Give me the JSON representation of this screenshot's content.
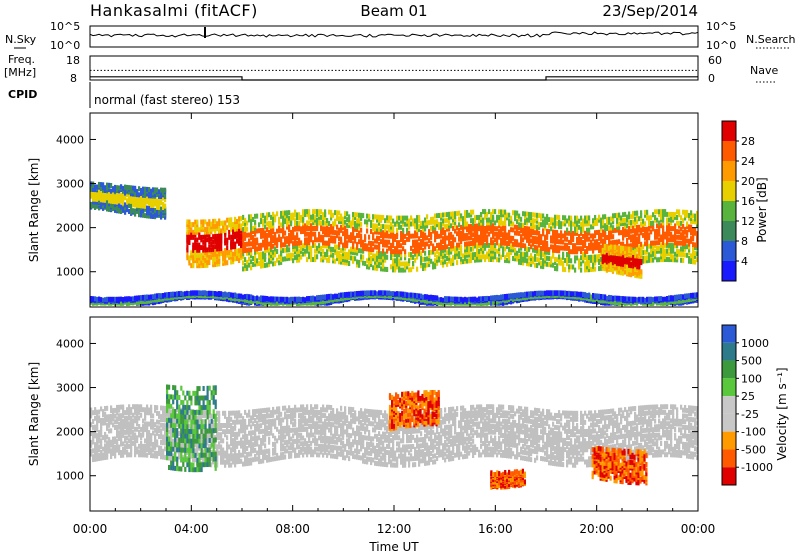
{
  "header": {
    "station": "Hankasalmi (fitACF)",
    "beam": "Beam 01",
    "date": "23/Sep/2014"
  },
  "noise_panel": {
    "left_label": "N.Sky",
    "right_label": "N.Search",
    "left_ticks": [
      "10^5",
      "10^0"
    ],
    "right_ticks": [
      "10^5",
      "10^0"
    ]
  },
  "freq_panel": {
    "left_label_line1": "Freq.",
    "left_label_line2": "[MHz]",
    "left_ticks": [
      "18",
      "8"
    ],
    "right_label": "Nave",
    "right_ticks": [
      "60",
      "0"
    ]
  },
  "cpid": {
    "label": "CPID",
    "text": "normal (fast stereo) 153"
  },
  "colors": {
    "power": [
      "#1a1aff",
      "#2c5ad6",
      "#3c8a5a",
      "#58b43c",
      "#e8d000",
      "#ff9a00",
      "#ff5a00",
      "#e00000"
    ],
    "velocity": [
      "#e00000",
      "#ff5a00",
      "#ff9a00",
      "#c8c8c8",
      "#c8c8c8",
      "#5ac83c",
      "#3c9a3c",
      "#2c7a8a",
      "#2c5ad6"
    ],
    "ground_scatter": "#c0c0c0"
  },
  "chart_data": [
    {
      "type": "heatmap",
      "name": "power",
      "ylabel": "Slant Range [km]",
      "yticks": [
        1000,
        2000,
        3000,
        4000
      ],
      "ylim": [
        200,
        4600
      ],
      "xlim": [
        0,
        24
      ],
      "colorbar_label": "Power [dB]",
      "colorbar_ticks": [
        "28",
        "24",
        "20",
        "16",
        "12",
        "8",
        "4"
      ],
      "features": [
        {
          "region": "main band",
          "x": [
            6,
            24
          ],
          "y": [
            1100,
            2300
          ],
          "value_db": 24
        },
        {
          "region": "arc 04-06h",
          "x": [
            3.8,
            6.0
          ],
          "y": [
            1200,
            2200
          ],
          "value_db": 26
        },
        {
          "region": "early band",
          "x": [
            0,
            3
          ],
          "y": [
            2300,
            2900
          ],
          "value_db": 14
        },
        {
          "region": "blob 20-22h",
          "x": [
            20.2,
            21.8
          ],
          "y": [
            900,
            1500
          ],
          "value_db": 28
        },
        {
          "region": "near range",
          "x": [
            0,
            24
          ],
          "y": [
            250,
            400
          ],
          "value_db": 10
        }
      ]
    },
    {
      "type": "heatmap",
      "name": "velocity",
      "ylabel": "Slant Range [km]",
      "yticks": [
        1000,
        2000,
        3000,
        4000
      ],
      "ylim": [
        200,
        4600
      ],
      "xlim": [
        0,
        24
      ],
      "xlabel": "Time UT",
      "xticks": [
        "00:00",
        "04:00",
        "08:00",
        "12:00",
        "16:00",
        "20:00",
        "00:00"
      ],
      "colorbar_label": "Velocity [m s⁻¹]",
      "colorbar_ticks": [
        "1000",
        "500",
        "100",
        "25",
        "-25",
        "-100",
        "-500",
        "-1000"
      ],
      "features": [
        {
          "region": "ground scatter band",
          "x": [
            0,
            24
          ],
          "y": [
            1300,
            2500
          ],
          "value": 0
        },
        {
          "region": "flow 03-05h",
          "x": [
            3.0,
            5.0
          ],
          "y": [
            1200,
            3100
          ],
          "value": 300
        },
        {
          "region": "flow 12-14h",
          "x": [
            11.8,
            13.8
          ],
          "y": [
            2000,
            2800
          ],
          "value": -600
        },
        {
          "region": "flow 16-17h",
          "x": [
            15.8,
            17.2
          ],
          "y": [
            800,
            1100
          ],
          "value": -300
        },
        {
          "region": "flow 20-22h",
          "x": [
            19.8,
            22.0
          ],
          "y": [
            900,
            1600
          ],
          "value": -200
        }
      ]
    },
    {
      "type": "line",
      "name": "noise",
      "values_description_none": true,
      "ylim_log10": [
        0,
        5
      ]
    },
    {
      "type": "line",
      "name": "frequency and nave",
      "freq_mhz": [
        [
          0,
          12
        ],
        [
          6,
          12
        ],
        [
          6,
          12
        ],
        [
          18,
          12
        ],
        [
          18,
          12
        ],
        [
          24,
          12
        ]
      ],
      "nave": [
        [
          0,
          8
        ],
        [
          6,
          8
        ],
        [
          6,
          0
        ],
        [
          18,
          0
        ],
        [
          18,
          8
        ],
        [
          24,
          8
        ]
      ]
    }
  ]
}
